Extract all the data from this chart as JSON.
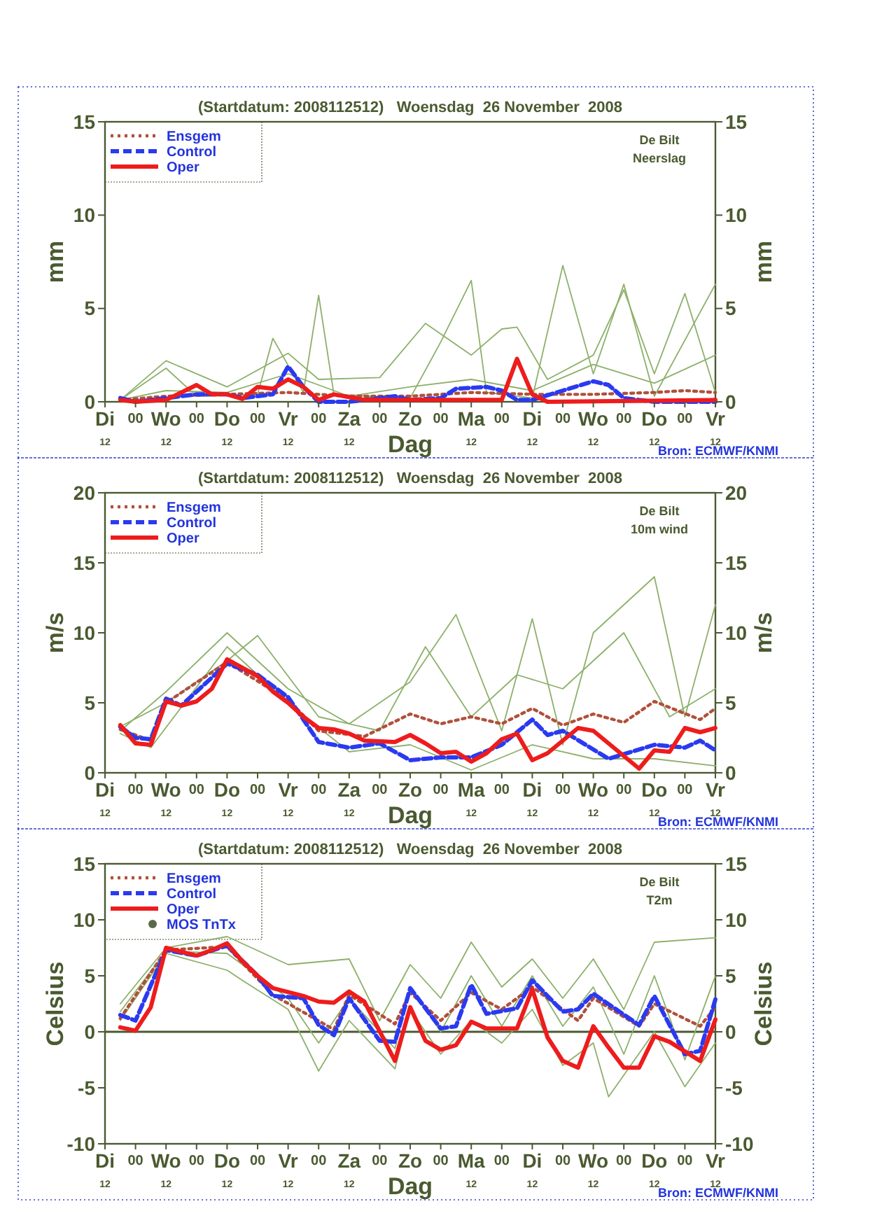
{
  "chart_data": [
    {
      "type": "line",
      "title": "(Startdatum: 2008112512)   Woensdag  26 November  2008",
      "xlabel": "Dag",
      "ylabel": "mm",
      "y2label": "mm",
      "annotations": [
        "De Bilt",
        "Neerslag",
        "Bron: ECMWF/KNMI"
      ],
      "xlim": [
        "2008-11-25T12:00",
        "2008-12-05T12:00"
      ],
      "xticks": [
        {
          "value": "2008-11-25T12:00",
          "label": "Di$_{12}$"
        },
        {
          "value": "2008-11-26T00:00",
          "label": "00"
        },
        {
          "value": "2008-11-26T12:00",
          "label": "Wo$_{12}$"
        },
        {
          "value": "2008-11-27T00:00",
          "label": "00"
        },
        {
          "value": "2008-11-27T12:00",
          "label": "Do$_{12}$"
        },
        {
          "value": "2008-11-28T00:00",
          "label": "00"
        },
        {
          "value": "2008-11-28T12:00",
          "label": "Vr$_{12}$"
        },
        {
          "value": "2008-11-29T00:00",
          "label": "00"
        },
        {
          "value": "2008-11-29T12:00",
          "label": "Za$_{12}$"
        },
        {
          "value": "2008-11-30T00:00",
          "label": "00"
        },
        {
          "value": "2008-11-30T12:00",
          "label": "Zo"
        },
        {
          "value": "2008-12-01T00:00",
          "label": "00"
        },
        {
          "value": "2008-12-01T12:00",
          "label": "Ma$_{12}$"
        },
        {
          "value": "2008-12-02T00:00",
          "label": "00"
        },
        {
          "value": "2008-12-02T12:00",
          "label": "Di$_{12}$"
        },
        {
          "value": "2008-12-03T00:00",
          "label": "00"
        },
        {
          "value": "2008-12-03T12:00",
          "label": "Wo$_{12}$"
        },
        {
          "value": "2008-12-04T00:00",
          "label": "00"
        },
        {
          "value": "2008-12-04T12:00",
          "label": "Do$_{12}$"
        },
        {
          "value": "2008-12-05T00:00",
          "label": "00"
        },
        {
          "value": "2008-12-05T12:00",
          "label": "Vr$_{12}$"
        }
      ],
      "ylim": [
        0,
        15
      ],
      "yticks": [
        0,
        5,
        10,
        15
      ],
      "y2lim": [
        0,
        15
      ],
      "y2ticks": [
        0,
        5,
        10,
        15
      ],
      "legend": "top left",
      "series": [
        {
          "color": "#8db06a",
          "line_style": "solid",
          "x": [
            "2008-11-25T18:00",
            "2008-11-26T12:00",
            "2008-11-27T00:00",
            "2008-11-28T00:00",
            "2008-11-28T06:00",
            "2008-11-28T18:00",
            "2008-11-29T00:00",
            "2008-11-29T06:00",
            "2008-11-30T12:00",
            "2008-12-01T00:00",
            "2008-12-01T12:00",
            "2008-12-01T18:00",
            "2008-12-02T12:00",
            "2008-12-03T00:00",
            "2008-12-03T12:00",
            "2008-12-04T00:00",
            "2008-12-04T12:00",
            "2008-12-05T12:00"
          ],
          "values": [
            0.1,
            1.8,
            0.3,
            0.4,
            3.4,
            0.5,
            5.7,
            0.4,
            0.2,
            3.2,
            6.5,
            0.5,
            0.2,
            7.3,
            1.5,
            6.3,
            0.3,
            6.3
          ]
        },
        {
          "color": "#8db06a",
          "line_style": "solid",
          "x": [
            "2008-11-25T18:00",
            "2008-11-26T12:00",
            "2008-11-27T12:00",
            "2008-11-28T12:00",
            "2008-11-29T00:00",
            "2008-11-30T00:00",
            "2008-11-30T18:00",
            "2008-12-01T12:00",
            "2008-12-02T00:00",
            "2008-12-02T06:00",
            "2008-12-02T18:00",
            "2008-12-03T12:00",
            "2008-12-04T00:00",
            "2008-12-04T12:00",
            "2008-12-05T00:00",
            "2008-12-05T12:00"
          ],
          "values": [
            0.1,
            2.2,
            0.8,
            2.6,
            1.2,
            1.3,
            4.2,
            2.5,
            3.9,
            4,
            1.2,
            2.5,
            6,
            1.5,
            5.8,
            0.5
          ]
        },
        {
          "color": "#8db06a",
          "line_style": "solid",
          "x": [
            "2008-11-25T18:00",
            "2008-11-26T12:00",
            "2008-11-27T12:00",
            "2008-11-28T12:00",
            "2008-11-29T12:00",
            "2008-11-30T12:00",
            "2008-12-01T12:00",
            "2008-12-02T12:00",
            "2008-12-03T12:00",
            "2008-12-04T12:00",
            "2008-12-05T12:00"
          ],
          "values": [
            0.1,
            0.6,
            0.5,
            1.5,
            0.3,
            0.8,
            1.2,
            0.6,
            2,
            1,
            2.5
          ]
        },
        {
          "name": "Ensgem",
          "color": "#b0503a",
          "line_style": "dotted",
          "x": [
            "2008-11-25T18:00",
            "2008-11-26T12:00",
            "2008-11-27T12:00",
            "2008-11-28T12:00",
            "2008-11-29T12:00",
            "2008-11-30T12:00",
            "2008-12-01T12:00",
            "2008-12-02T12:00",
            "2008-12-03T12:00",
            "2008-12-04T12:00",
            "2008-12-05T00:00",
            "2008-12-05T12:00"
          ],
          "values": [
            0.1,
            0.3,
            0.4,
            0.5,
            0.3,
            0.3,
            0.5,
            0.4,
            0.4,
            0.5,
            0.6,
            0.5
          ]
        },
        {
          "name": "Control",
          "color": "#2a3af0",
          "line_style": "dashed",
          "x": [
            "2008-11-25T18:00",
            "2008-11-26T00:00",
            "2008-11-27T00:00",
            "2008-11-27T12:00",
            "2008-11-27T18:00",
            "2008-11-28T06:00",
            "2008-11-28T12:00",
            "2008-11-28T18:00",
            "2008-11-29T00:00",
            "2008-11-29T12:00",
            "2008-11-30T06:00",
            "2008-11-30T12:00",
            "2008-12-01T00:00",
            "2008-12-01T06:00",
            "2008-12-01T18:00",
            "2008-12-02T00:00",
            "2008-12-02T06:00",
            "2008-12-02T12:00",
            "2008-12-03T00:00",
            "2008-12-03T12:00",
            "2008-12-03T18:00",
            "2008-12-04T00:00",
            "2008-12-04T12:00",
            "2008-12-05T12:00"
          ],
          "values": [
            0.2,
            0,
            0.4,
            0.4,
            0.2,
            0.4,
            1.9,
            0.8,
            0,
            0,
            0.3,
            0.1,
            0.2,
            0.7,
            0.8,
            0.6,
            0.1,
            0.1,
            0.6,
            1.1,
            0.9,
            0.2,
            0,
            0
          ]
        },
        {
          "name": "Oper",
          "color": "#ee1c1c",
          "line_style": "solid",
          "x": [
            "2008-11-25T18:00",
            "2008-11-26T00:00",
            "2008-11-26T12:00",
            "2008-11-27T00:00",
            "2008-11-27T06:00",
            "2008-11-27T12:00",
            "2008-11-27T18:00",
            "2008-11-28T00:00",
            "2008-11-28T06:00",
            "2008-11-28T12:00",
            "2008-11-28T18:00",
            "2008-11-29T00:00",
            "2008-11-29T06:00",
            "2008-11-29T18:00",
            "2008-12-02T00:00",
            "2008-12-02T06:00",
            "2008-12-02T12:00",
            "2008-12-02T18:00",
            "2008-12-05T12:00"
          ],
          "values": [
            0.1,
            0,
            0.1,
            0.9,
            0.4,
            0.4,
            0.15,
            0.8,
            0.7,
            1.2,
            0.8,
            0.1,
            0.4,
            0.1,
            0.1,
            2.3,
            0.4,
            0,
            0.1
          ]
        }
      ]
    },
    {
      "type": "line",
      "title": "(Startdatum: 2008112512)   Woensdag  26 November  2008",
      "xlabel": "Dag",
      "ylabel": "m/s",
      "y2label": "m/s",
      "annotations": [
        "De Bilt",
        "10m wind",
        "Bron: ECMWF/KNMI"
      ],
      "xlim": [
        "2008-11-25T12:00",
        "2008-12-05T12:00"
      ],
      "xticks": [
        {
          "value": "2008-11-25T12:00",
          "label": "Di$_{12}$"
        },
        {
          "value": "2008-11-26T00:00",
          "label": "00"
        },
        {
          "value": "2008-11-26T12:00",
          "label": "Wo$_{12}$"
        },
        {
          "value": "2008-11-27T00:00",
          "label": "00"
        },
        {
          "value": "2008-11-27T12:00",
          "label": "Do$_{12}$"
        },
        {
          "value": "2008-11-28T00:00",
          "label": "00"
        },
        {
          "value": "2008-11-28T12:00",
          "label": "Vr$_{12}$"
        },
        {
          "value": "2008-11-29T00:00",
          "label": "00"
        },
        {
          "value": "2008-11-29T12:00",
          "label": "Za$_{12}$"
        },
        {
          "value": "2008-11-30T00:00",
          "label": "00"
        },
        {
          "value": "2008-11-30T12:00",
          "label": "Zo"
        },
        {
          "value": "2008-12-01T00:00",
          "label": "00"
        },
        {
          "value": "2008-12-01T12:00",
          "label": "Ma$_{12}$"
        },
        {
          "value": "2008-12-02T00:00",
          "label": "00"
        },
        {
          "value": "2008-12-02T12:00",
          "label": "Di$_{12}$"
        },
        {
          "value": "2008-12-03T00:00",
          "label": "00"
        },
        {
          "value": "2008-12-03T12:00",
          "label": "Wo$_{12}$"
        },
        {
          "value": "2008-12-04T00:00",
          "label": "00"
        },
        {
          "value": "2008-12-04T12:00",
          "label": "Do$_{12}$"
        },
        {
          "value": "2008-12-05T00:00",
          "label": "00"
        },
        {
          "value": "2008-12-05T12:00",
          "label": "Vr$_{12}$"
        }
      ],
      "ylim": [
        0,
        20
      ],
      "yticks": [
        0,
        5,
        10,
        15,
        20
      ],
      "y2lim": [
        0,
        20
      ],
      "y2ticks": [
        0,
        5,
        10,
        15,
        20
      ],
      "legend": "top left",
      "series": [
        {
          "color": "#8db06a",
          "line_style": "solid",
          "x": [
            "2008-11-25T18:00",
            "2008-11-26T12:00",
            "2008-11-27T12:00",
            "2008-11-28T12:00",
            "2008-11-29T12:00",
            "2008-11-30T12:00",
            "2008-12-01T06:00",
            "2008-12-02T00:00",
            "2008-12-02T12:00",
            "2008-12-03T00:00",
            "2008-12-03T12:00",
            "2008-12-04T12:00",
            "2008-12-05T00:00",
            "2008-12-05T12:00"
          ],
          "values": [
            3,
            5.8,
            10,
            6,
            3.5,
            6.5,
            11.3,
            3,
            11,
            2,
            10,
            14,
            4,
            12
          ]
        },
        {
          "color": "#8db06a",
          "line_style": "solid",
          "x": [
            "2008-11-25T18:00",
            "2008-11-26T06:00",
            "2008-11-27T12:00",
            "2008-11-28T12:00",
            "2008-11-29T12:00",
            "2008-11-30T12:00",
            "2008-12-01T12:00",
            "2008-12-02T12:00",
            "2008-12-03T12:00",
            "2008-12-04T12:00",
            "2008-12-05T12:00"
          ],
          "values": [
            2.8,
            1.8,
            9,
            5,
            1.5,
            2,
            0.2,
            2,
            1,
            1,
            0.5
          ]
        },
        {
          "color": "#8db06a",
          "line_style": "solid",
          "x": [
            "2008-11-25T18:00",
            "2008-11-26T12:00",
            "2008-11-27T12:00",
            "2008-11-28T00:00",
            "2008-11-29T00:00",
            "2008-11-30T00:00",
            "2008-11-30T18:00",
            "2008-12-01T12:00",
            "2008-12-02T06:00",
            "2008-12-03T00:00",
            "2008-12-04T00:00",
            "2008-12-04T18:00",
            "2008-12-05T12:00"
          ],
          "values": [
            3.3,
            5,
            8,
            9.8,
            4,
            3,
            9,
            4,
            7,
            6,
            10,
            4,
            6
          ]
        },
        {
          "name": "Ensgem",
          "color": "#b0503a",
          "line_style": "dotted",
          "x": [
            "2008-11-25T18:00",
            "2008-11-26T06:00",
            "2008-11-26T12:00",
            "2008-11-27T12:00",
            "2008-11-28T12:00",
            "2008-11-29T00:00",
            "2008-11-29T18:00",
            "2008-11-30T12:00",
            "2008-12-01T00:00",
            "2008-12-01T12:00",
            "2008-12-02T00:00",
            "2008-12-02T12:00",
            "2008-12-03T00:00",
            "2008-12-03T12:00",
            "2008-12-04T00:00",
            "2008-12-04T12:00",
            "2008-12-05T06:00",
            "2008-12-05T12:00"
          ],
          "values": [
            3.1,
            2.3,
            5,
            7.9,
            5.2,
            3,
            2.6,
            4.2,
            3.5,
            4,
            3.5,
            4.6,
            3.4,
            4.2,
            3.6,
            5.1,
            3.8,
            4.6
          ]
        },
        {
          "name": "Control",
          "color": "#2a3af0",
          "line_style": "dashed",
          "x": [
            "2008-11-25T18:00",
            "2008-11-26T00:00",
            "2008-11-26T06:00",
            "2008-11-26T12:00",
            "2008-11-26T18:00",
            "2008-11-27T12:00",
            "2008-11-28T00:00",
            "2008-11-28T12:00",
            "2008-11-29T00:00",
            "2008-11-29T06:00",
            "2008-11-29T12:00",
            "2008-11-30T00:00",
            "2008-11-30T12:00",
            "2008-12-01T00:00",
            "2008-12-01T12:00",
            "2008-12-02T00:00",
            "2008-12-02T12:00",
            "2008-12-02T18:00",
            "2008-12-03T00:00",
            "2008-12-03T18:00",
            "2008-12-04T12:00",
            "2008-12-05T00:00",
            "2008-12-05T06:00",
            "2008-12-05T12:00"
          ],
          "values": [
            3.3,
            2.5,
            2.4,
            5.3,
            4.8,
            7.8,
            7,
            5.4,
            2.2,
            2,
            1.8,
            2.1,
            0.9,
            1.1,
            1.1,
            2,
            3.8,
            2.7,
            3,
            1,
            2,
            1.8,
            2.3,
            1.6
          ]
        },
        {
          "name": "Oper",
          "color": "#ee1c1c",
          "line_style": "solid",
          "x": [
            "2008-11-25T18:00",
            "2008-11-26T00:00",
            "2008-11-26T06:00",
            "2008-11-26T12:00",
            "2008-11-26T18:00",
            "2008-11-27T00:00",
            "2008-11-27T06:00",
            "2008-11-27T12:00",
            "2008-11-28T00:00",
            "2008-11-28T06:00",
            "2008-11-28T12:00",
            "2008-11-28T18:00",
            "2008-11-29T00:00",
            "2008-11-29T06:00",
            "2008-11-29T12:00",
            "2008-11-29T18:00",
            "2008-11-30T06:00",
            "2008-11-30T12:00",
            "2008-11-30T18:00",
            "2008-12-01T00:00",
            "2008-12-01T06:00",
            "2008-12-01T12:00",
            "2008-12-01T18:00",
            "2008-12-02T00:00",
            "2008-12-02T06:00",
            "2008-12-02T12:00",
            "2008-12-02T18:00",
            "2008-12-03T06:00",
            "2008-12-03T12:00",
            "2008-12-04T06:00",
            "2008-12-04T12:00",
            "2008-12-04T18:00",
            "2008-12-05T00:00",
            "2008-12-05T06:00",
            "2008-12-05T12:00"
          ],
          "values": [
            3.4,
            2.1,
            2,
            5.1,
            4.8,
            5.1,
            6,
            8.1,
            6.9,
            5.8,
            5,
            4,
            3.2,
            3.1,
            2.8,
            2.3,
            2.2,
            2.7,
            2.1,
            1.4,
            1.5,
            0.8,
            1.4,
            2.4,
            2.8,
            0.9,
            1.4,
            3.2,
            3,
            0.3,
            1.6,
            1.5,
            3.2,
            2.9,
            3.2
          ]
        }
      ]
    },
    {
      "type": "line",
      "title": "(Startdatum: 2008112512)   Woensdag  26 November  2008",
      "xlabel": "Dag",
      "ylabel": "Celsius",
      "y2label": "Celsius",
      "annotations": [
        "De Bilt",
        "T2m",
        "Bron: ECMWF/KNMI"
      ],
      "xlim": [
        "2008-11-25T12:00",
        "2008-12-05T12:00"
      ],
      "xticks": [
        {
          "value": "2008-11-25T12:00",
          "label": "Di$_{12}$"
        },
        {
          "value": "2008-11-26T00:00",
          "label": "00"
        },
        {
          "value": "2008-11-26T12:00",
          "label": "Wo$_{12}$"
        },
        {
          "value": "2008-11-27T00:00",
          "label": "00"
        },
        {
          "value": "2008-11-27T12:00",
          "label": "Do$_{12}$"
        },
        {
          "value": "2008-11-28T00:00",
          "label": "00"
        },
        {
          "value": "2008-11-28T12:00",
          "label": "Vr$_{12}$"
        },
        {
          "value": "2008-11-29T00:00",
          "label": "00"
        },
        {
          "value": "2008-11-29T12:00",
          "label": "Za$_{12}$"
        },
        {
          "value": "2008-11-30T00:00",
          "label": "00"
        },
        {
          "value": "2008-11-30T12:00",
          "label": "Zo"
        },
        {
          "value": "2008-12-01T00:00",
          "label": "00"
        },
        {
          "value": "2008-12-01T12:00",
          "label": "Ma$_{12}$"
        },
        {
          "value": "2008-12-02T00:00",
          "label": "00"
        },
        {
          "value": "2008-12-02T12:00",
          "label": "Di$_{12}$"
        },
        {
          "value": "2008-12-03T00:00",
          "label": "00"
        },
        {
          "value": "2008-12-03T12:00",
          "label": "Wo$_{12}$"
        },
        {
          "value": "2008-12-04T00:00",
          "label": "00"
        },
        {
          "value": "2008-12-04T12:00",
          "label": "Do$_{12}$"
        },
        {
          "value": "2008-12-05T00:00",
          "label": "00"
        },
        {
          "value": "2008-12-05T12:00",
          "label": "Vr$_{12}$"
        }
      ],
      "ylim": [
        -10,
        15
      ],
      "yticks": [
        -10,
        -5,
        0,
        5,
        10,
        15
      ],
      "y2lim": [
        -10,
        15
      ],
      "y2ticks": [
        -10,
        -5,
        0,
        5,
        10,
        15
      ],
      "legend": "top left",
      "ref_lines": [
        {
          "axis": "y",
          "value": 0,
          "color": "#4a5a30"
        }
      ],
      "series": [
        {
          "color": "#8db06a",
          "line_style": "solid",
          "x": [
            "2008-11-25T18:00",
            "2008-11-26T12:00",
            "2008-11-27T12:00",
            "2008-11-28T12:00",
            "2008-11-29T12:00",
            "2008-11-30T00:00",
            "2008-11-30T12:00",
            "2008-12-01T00:00",
            "2008-12-01T12:00",
            "2008-12-02T00:00",
            "2008-12-02T12:00",
            "2008-12-03T00:00",
            "2008-12-03T12:00",
            "2008-12-04T00:00",
            "2008-12-04T12:00",
            "2008-12-05T12:00"
          ],
          "values": [
            2.5,
            7.5,
            8.5,
            6,
            6.5,
            1,
            6,
            3,
            8,
            4,
            6.5,
            3,
            6.5,
            2,
            8,
            8.4
          ]
        },
        {
          "color": "#8db06a",
          "line_style": "solid",
          "x": [
            "2008-11-25T18:00",
            "2008-11-26T12:00",
            "2008-11-27T12:00",
            "2008-11-27T18:00",
            "2008-11-28T12:00",
            "2008-11-29T00:00",
            "2008-11-29T12:00",
            "2008-11-30T06:00",
            "2008-11-30T12:00",
            "2008-12-01T00:00",
            "2008-12-01T12:00",
            "2008-12-02T00:00",
            "2008-12-02T12:00",
            "2008-12-03T00:00",
            "2008-12-03T12:00",
            "2008-12-03T18:00",
            "2008-12-04T12:00",
            "2008-12-05T00:00",
            "2008-12-05T12:00"
          ],
          "values": [
            1,
            7,
            5.5,
            4.6,
            2,
            -3.5,
            1,
            -3.3,
            2,
            -2,
            1,
            -1,
            2,
            -3,
            -1,
            -5.8,
            0,
            -4.9,
            -1
          ]
        },
        {
          "color": "#8db06a",
          "line_style": "solid",
          "x": [
            "2008-11-25T18:00",
            "2008-11-26T12:00",
            "2008-11-27T12:00",
            "2008-11-28T12:00",
            "2008-11-29T00:00",
            "2008-11-29T12:00",
            "2008-11-30T06:00",
            "2008-11-30T12:00",
            "2008-12-01T00:00",
            "2008-12-01T12:00",
            "2008-12-02T00:00",
            "2008-12-02T12:00",
            "2008-12-03T00:00",
            "2008-12-03T12:00",
            "2008-12-04T00:00",
            "2008-12-04T12:00",
            "2008-12-05T00:00",
            "2008-12-05T12:00"
          ],
          "values": [
            1.8,
            7.2,
            7,
            3,
            -1,
            3,
            -1.5,
            4,
            0,
            5,
            0.5,
            5,
            0.5,
            4,
            -2,
            5,
            -2.5,
            5
          ]
        },
        {
          "name": "Ensgem",
          "color": "#b0503a",
          "line_style": "dotted",
          "x": [
            "2008-11-25T18:00",
            "2008-11-26T12:00",
            "2008-11-27T12:00",
            "2008-11-28T06:00",
            "2008-11-29T06:00",
            "2008-11-29T12:00",
            "2008-11-30T06:00",
            "2008-11-30T12:00",
            "2008-12-01T00:00",
            "2008-12-01T12:00",
            "2008-12-02T00:00",
            "2008-12-02T12:00",
            "2008-12-03T06:00",
            "2008-12-03T12:00",
            "2008-12-04T06:00",
            "2008-12-04T12:00",
            "2008-12-05T06:00",
            "2008-12-05T12:00"
          ],
          "values": [
            1.2,
            7.3,
            7.6,
            3.3,
            0.2,
            3.3,
            0.7,
            3.5,
            1,
            3.5,
            2,
            4,
            1,
            3,
            0.5,
            2.5,
            0.5,
            2.2
          ]
        },
        {
          "name": "Control",
          "color": "#2a3af0",
          "line_style": "dashed",
          "x": [
            "2008-11-25T18:00",
            "2008-11-26T00:00",
            "2008-11-26T12:00",
            "2008-11-27T00:00",
            "2008-11-27T12:00",
            "2008-11-28T00:00",
            "2008-11-28T06:00",
            "2008-11-28T18:00",
            "2008-11-29T00:00",
            "2008-11-29T06:00",
            "2008-11-29T12:00",
            "2008-11-30T00:00",
            "2008-11-30T06:00",
            "2008-11-30T12:00",
            "2008-12-01T00:00",
            "2008-12-01T06:00",
            "2008-12-01T12:00",
            "2008-12-01T18:00",
            "2008-12-02T06:00",
            "2008-12-02T12:00",
            "2008-12-03T00:00",
            "2008-12-03T06:00",
            "2008-12-03T12:00",
            "2008-12-04T06:00",
            "2008-12-04T12:00",
            "2008-12-05T00:00",
            "2008-12-05T06:00",
            "2008-12-05T12:00"
          ],
          "values": [
            1.5,
            1,
            7.3,
            6.8,
            7.7,
            5,
            3.2,
            3,
            0.6,
            -0.3,
            3,
            -0.8,
            -0.9,
            3.9,
            0.3,
            0.5,
            4.2,
            1.6,
            2.1,
            4.6,
            1.8,
            2,
            3.4,
            0.6,
            3.2,
            -2,
            -1.7,
            2.9
          ]
        },
        {
          "name": "Oper",
          "color": "#ee1c1c",
          "line_style": "solid",
          "x": [
            "2008-11-25T18:00",
            "2008-11-26T00:00",
            "2008-11-26T06:00",
            "2008-11-26T12:00",
            "2008-11-27T00:00",
            "2008-11-27T06:00",
            "2008-11-27T12:00",
            "2008-11-27T18:00",
            "2008-11-28T00:00",
            "2008-11-28T06:00",
            "2008-11-28T18:00",
            "2008-11-29T00:00",
            "2008-11-29T06:00",
            "2008-11-29T12:00",
            "2008-11-29T18:00",
            "2008-11-30T06:00",
            "2008-11-30T12:00",
            "2008-11-30T18:00",
            "2008-12-01T00:00",
            "2008-12-01T06:00",
            "2008-12-01T12:00",
            "2008-12-01T18:00",
            "2008-12-02T06:00",
            "2008-12-02T12:00",
            "2008-12-02T18:00",
            "2008-12-03T00:00",
            "2008-12-03T06:00",
            "2008-12-03T12:00",
            "2008-12-03T18:00",
            "2008-12-04T00:00",
            "2008-12-04T06:00",
            "2008-12-04T12:00",
            "2008-12-04T18:00",
            "2008-12-05T06:00",
            "2008-12-05T12:00"
          ],
          "values": [
            0.4,
            0.1,
            2.2,
            7.5,
            6.8,
            7.3,
            7.9,
            6.3,
            5,
            3.9,
            3.2,
            2.7,
            2.6,
            3.6,
            2.7,
            -2.6,
            2.2,
            -0.8,
            -1.6,
            -1.2,
            0.9,
            0.3,
            0.3,
            3.8,
            -0.5,
            -2.6,
            -3.2,
            0.5,
            -1.4,
            -3.2,
            -3.2,
            -0.4,
            -0.9,
            -2.6,
            1.1
          ]
        },
        {
          "name": "MOS TnTx",
          "type": "scatter",
          "color": "#5a6a48",
          "marker": "circle"
        }
      ]
    }
  ]
}
